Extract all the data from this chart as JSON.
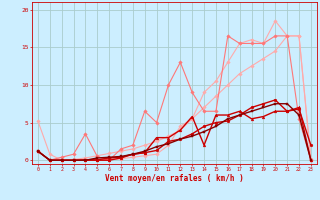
{
  "background_color": "#cceeff",
  "grid_color": "#aacccc",
  "xlabel": "Vent moyen/en rafales ( km/h )",
  "xlabel_color": "#cc0000",
  "tick_color": "#cc0000",
  "ylim": [
    -0.5,
    21
  ],
  "xlim": [
    -0.5,
    23.5
  ],
  "yticks": [
    0,
    5,
    10,
    15,
    20
  ],
  "xticks": [
    0,
    1,
    2,
    3,
    4,
    5,
    6,
    7,
    8,
    9,
    10,
    11,
    12,
    13,
    14,
    15,
    16,
    17,
    18,
    19,
    20,
    21,
    22,
    23
  ],
  "series": [
    {
      "x": [
        0,
        1,
        2,
        3,
        4,
        5,
        6,
        7,
        8,
        9,
        10,
        11,
        12,
        13,
        14,
        15,
        16,
        17,
        18,
        19,
        20,
        21,
        22,
        23
      ],
      "y": [
        5.2,
        0.8,
        0.0,
        0.1,
        0.3,
        0.6,
        0.9,
        1.2,
        1.5,
        2.0,
        2.5,
        3.2,
        4.0,
        5.5,
        7.0,
        8.5,
        10.0,
        11.5,
        12.5,
        13.5,
        14.5,
        16.5,
        16.5,
        0.2
      ],
      "color": "#ffaaaa",
      "lw": 0.8,
      "marker": "D",
      "ms": 1.8,
      "zorder": 2
    },
    {
      "x": [
        0,
        1,
        2,
        3,
        4,
        5,
        6,
        7,
        8,
        9,
        10,
        11,
        12,
        13,
        14,
        15,
        16,
        17,
        18,
        19,
        20,
        21,
        22,
        23
      ],
      "y": [
        1.2,
        0.0,
        0.0,
        0.0,
        0.05,
        0.05,
        0.1,
        0.2,
        0.4,
        0.6,
        0.8,
        2.0,
        4.5,
        5.5,
        9.0,
        10.5,
        13.0,
        15.5,
        16.0,
        15.5,
        18.5,
        16.5,
        16.5,
        0.0
      ],
      "color": "#ffaaaa",
      "lw": 0.8,
      "marker": "D",
      "ms": 1.8,
      "zorder": 2
    },
    {
      "x": [
        0,
        1,
        2,
        3,
        4,
        5,
        6,
        7,
        8,
        9,
        10,
        11,
        12,
        13,
        14,
        15,
        16,
        17,
        18,
        19,
        20,
        21,
        22,
        23
      ],
      "y": [
        1.2,
        0.0,
        0.4,
        0.8,
        3.5,
        0.5,
        0.0,
        1.5,
        2.0,
        6.5,
        5.0,
        10.0,
        13.0,
        9.0,
        6.5,
        6.5,
        16.5,
        15.5,
        15.5,
        15.5,
        16.5,
        16.5,
        5.5,
        0.0
      ],
      "color": "#ff7777",
      "lw": 0.8,
      "marker": "D",
      "ms": 1.8,
      "zorder": 3
    },
    {
      "x": [
        0,
        1,
        2,
        3,
        4,
        5,
        6,
        7,
        8,
        9,
        10,
        11,
        12,
        13,
        14,
        15,
        16,
        17,
        18,
        19,
        20,
        21,
        22,
        23
      ],
      "y": [
        1.2,
        0.0,
        0.0,
        0.0,
        0.05,
        0.05,
        0.3,
        0.4,
        0.8,
        1.0,
        1.3,
        2.5,
        2.8,
        3.5,
        4.5,
        5.0,
        5.2,
        6.0,
        7.0,
        7.5,
        8.0,
        6.5,
        6.8,
        2.0
      ],
      "color": "#cc0000",
      "lw": 1.0,
      "marker": "o",
      "ms": 2.0,
      "zorder": 4
    },
    {
      "x": [
        0,
        1,
        2,
        3,
        4,
        5,
        6,
        7,
        8,
        9,
        10,
        11,
        12,
        13,
        14,
        15,
        16,
        17,
        18,
        19,
        20,
        21,
        22,
        23
      ],
      "y": [
        1.2,
        0.0,
        0.0,
        0.0,
        0.0,
        0.0,
        0.0,
        0.3,
        0.8,
        1.0,
        3.0,
        3.0,
        4.0,
        5.8,
        2.0,
        6.0,
        6.0,
        6.5,
        5.5,
        5.8,
        6.5,
        6.5,
        7.0,
        0.0
      ],
      "color": "#cc0000",
      "lw": 1.0,
      "marker": "^",
      "ms": 2.0,
      "zorder": 4
    },
    {
      "x": [
        0,
        1,
        2,
        3,
        4,
        5,
        6,
        7,
        8,
        9,
        10,
        11,
        12,
        13,
        14,
        15,
        16,
        17,
        18,
        19,
        20,
        21,
        22,
        23
      ],
      "y": [
        1.2,
        0.0,
        0.0,
        0.0,
        0.0,
        0.3,
        0.4,
        0.5,
        0.8,
        1.2,
        1.8,
        2.2,
        2.8,
        3.2,
        3.8,
        4.5,
        5.5,
        6.0,
        6.5,
        7.0,
        7.5,
        7.5,
        6.0,
        0.0
      ],
      "color": "#880000",
      "lw": 1.0,
      "marker": "s",
      "ms": 1.8,
      "zorder": 5
    }
  ]
}
